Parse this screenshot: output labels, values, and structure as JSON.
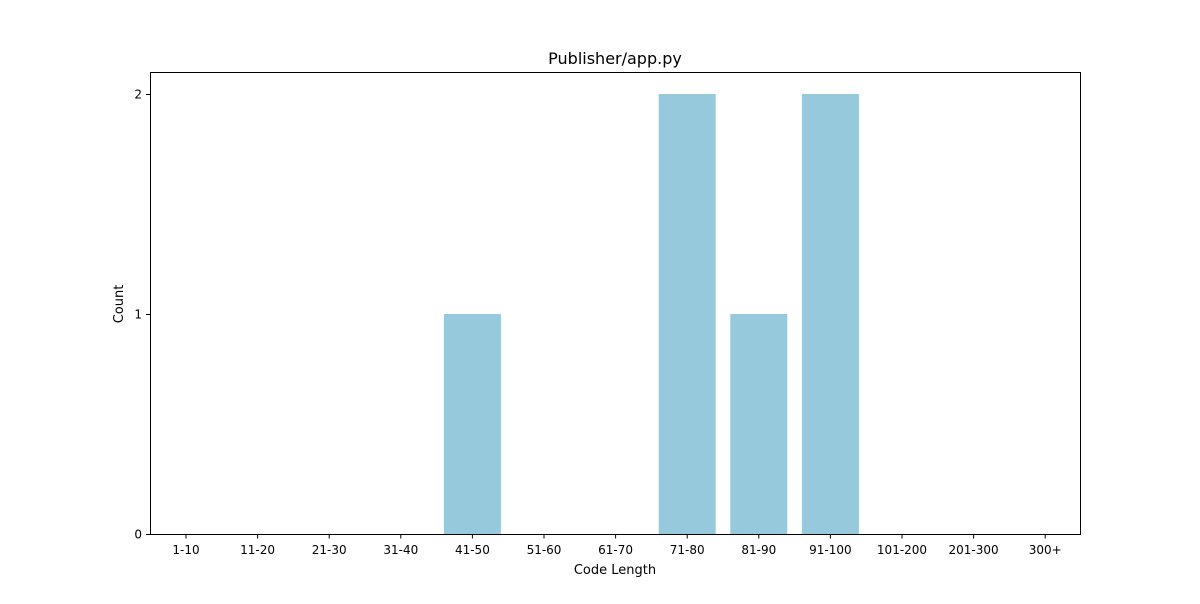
{
  "chart_data": {
    "type": "bar",
    "title": "Publisher/app.py",
    "xlabel": "Code Length",
    "ylabel": "Count",
    "categories": [
      "1-10",
      "11-20",
      "21-30",
      "31-40",
      "41-50",
      "51-60",
      "61-70",
      "71-80",
      "81-90",
      "91-100",
      "101-200",
      "201-300",
      "300+"
    ],
    "values": [
      0,
      0,
      0,
      0,
      1,
      0,
      0,
      2,
      1,
      2,
      0,
      0,
      0
    ],
    "ylim": [
      0,
      2.1
    ],
    "yticks": [
      0,
      1,
      2
    ],
    "grid": false,
    "bar_color": "#96c9dc"
  }
}
